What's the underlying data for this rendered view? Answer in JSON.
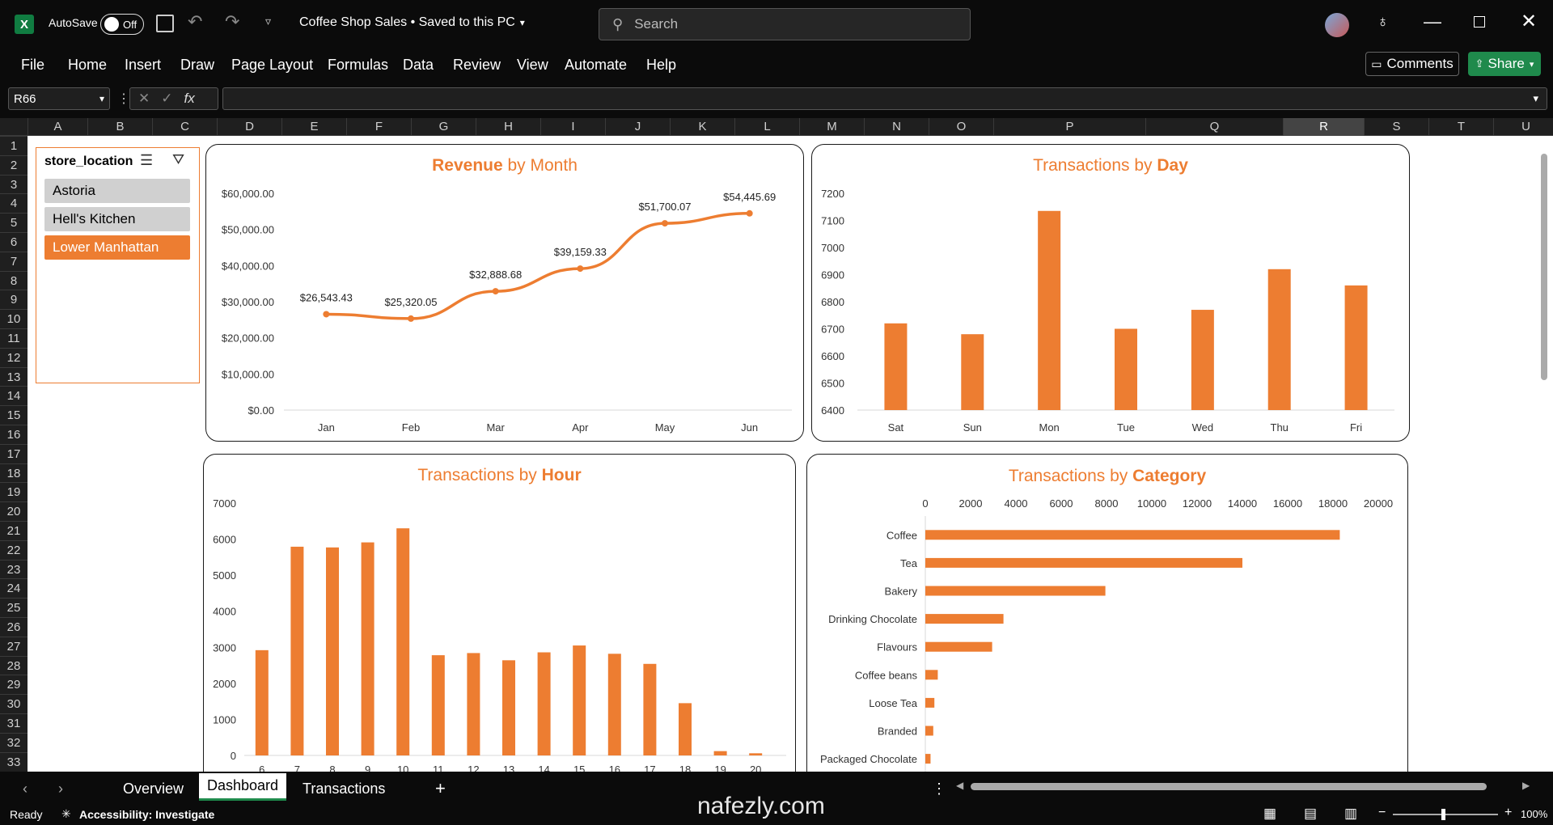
{
  "titlebar": {
    "autosave_label": "AutoSave",
    "autosave_state": "Off",
    "doc_title": "Coffee Shop Sales • Saved to this PC",
    "search_placeholder": "Search"
  },
  "menu": [
    "File",
    "Home",
    "Insert",
    "Draw",
    "Page Layout",
    "Formulas",
    "Data",
    "Review",
    "View",
    "Automate",
    "Help"
  ],
  "comments_label": "Comments",
  "share_label": "Share",
  "namebox": "R66",
  "fx_label": "fx",
  "columns": [
    "A",
    "B",
    "C",
    "D",
    "E",
    "F",
    "G",
    "H",
    "I",
    "J",
    "K",
    "L",
    "M",
    "N",
    "O",
    "P",
    "Q",
    "R",
    "S",
    "T",
    "U"
  ],
  "rows": [
    "1",
    "2",
    "3",
    "4",
    "5",
    "6",
    "7",
    "8",
    "9",
    "10",
    "11",
    "12",
    "13",
    "14",
    "15",
    "16",
    "17",
    "18",
    "19",
    "20",
    "21",
    "22",
    "23",
    "24",
    "25",
    "26",
    "27",
    "28",
    "29",
    "30",
    "31",
    "32",
    "33"
  ],
  "slicer": {
    "title": "store_location",
    "items": [
      "Astoria",
      "Hell's Kitchen",
      "Lower Manhattan"
    ],
    "selected": "Lower Manhattan"
  },
  "chart_data": [
    {
      "type": "line",
      "title_bold": "Revenue",
      "title_rest": " by Month",
      "categories": [
        "Jan",
        "Feb",
        "Mar",
        "Apr",
        "May",
        "Jun"
      ],
      "values": [
        26543.43,
        25320.05,
        32888.68,
        39159.33,
        51700.07,
        54445.69
      ],
      "labels": [
        "$26,543.43",
        "$25,320.05",
        "$32,888.68",
        "$39,159.33",
        "$51,700.07",
        "$54,445.69"
      ],
      "ylim": [
        0,
        60000
      ],
      "yticks": [
        "$0.00",
        "$10,000.00",
        "$20,000.00",
        "$30,000.00",
        "$40,000.00",
        "$50,000.00",
        "$60,000.00"
      ],
      "color": "#ed7d31"
    },
    {
      "type": "bar",
      "title_rest_pre": "Transactions by ",
      "title_bold": "Day",
      "categories": [
        "Sat",
        "Sun",
        "Mon",
        "Tue",
        "Wed",
        "Thu",
        "Fri"
      ],
      "values": [
        6720,
        6680,
        7135,
        6700,
        6770,
        6920,
        6860
      ],
      "ylim": [
        6400,
        7200
      ],
      "yticks": [
        "6400",
        "6500",
        "6600",
        "6700",
        "6800",
        "6900",
        "7000",
        "7100",
        "7200"
      ],
      "color": "#ed7d31"
    },
    {
      "type": "bar",
      "title_rest_pre": "Transactions by ",
      "title_bold": "Hour",
      "categories": [
        "6",
        "7",
        "8",
        "9",
        "10",
        "11",
        "12",
        "13",
        "14",
        "15",
        "16",
        "17",
        "18",
        "19",
        "20"
      ],
      "values": [
        2920,
        5790,
        5770,
        5910,
        6300,
        2780,
        2840,
        2640,
        2860,
        3050,
        2820,
        2540,
        1450,
        120,
        60
      ],
      "ylim": [
        0,
        7000
      ],
      "yticks": [
        "0",
        "1000",
        "2000",
        "3000",
        "4000",
        "5000",
        "6000",
        "7000"
      ],
      "color": "#ed7d31"
    },
    {
      "type": "bar-horizontal",
      "title_rest_pre": "Transactions by ",
      "title_bold": "Category",
      "categories": [
        "Coffee",
        "Tea",
        "Bakery",
        "Drinking Chocolate",
        "Flavours",
        "Coffee beans",
        "Loose Tea",
        "Branded",
        "Packaged Chocolate"
      ],
      "values": [
        18300,
        14000,
        7950,
        3450,
        2950,
        550,
        400,
        350,
        230
      ],
      "xlim": [
        0,
        20000
      ],
      "xticks": [
        "0",
        "2000",
        "4000",
        "6000",
        "8000",
        "10000",
        "12000",
        "14000",
        "16000",
        "18000",
        "20000"
      ],
      "color": "#ed7d31"
    }
  ],
  "sheets": [
    "Overview",
    "Dashboard",
    "Transactions"
  ],
  "active_sheet": "Dashboard",
  "status": {
    "ready": "Ready",
    "accessibility": "Accessibility: Investigate",
    "zoom": "100%"
  },
  "watermark": "nafezly.com"
}
